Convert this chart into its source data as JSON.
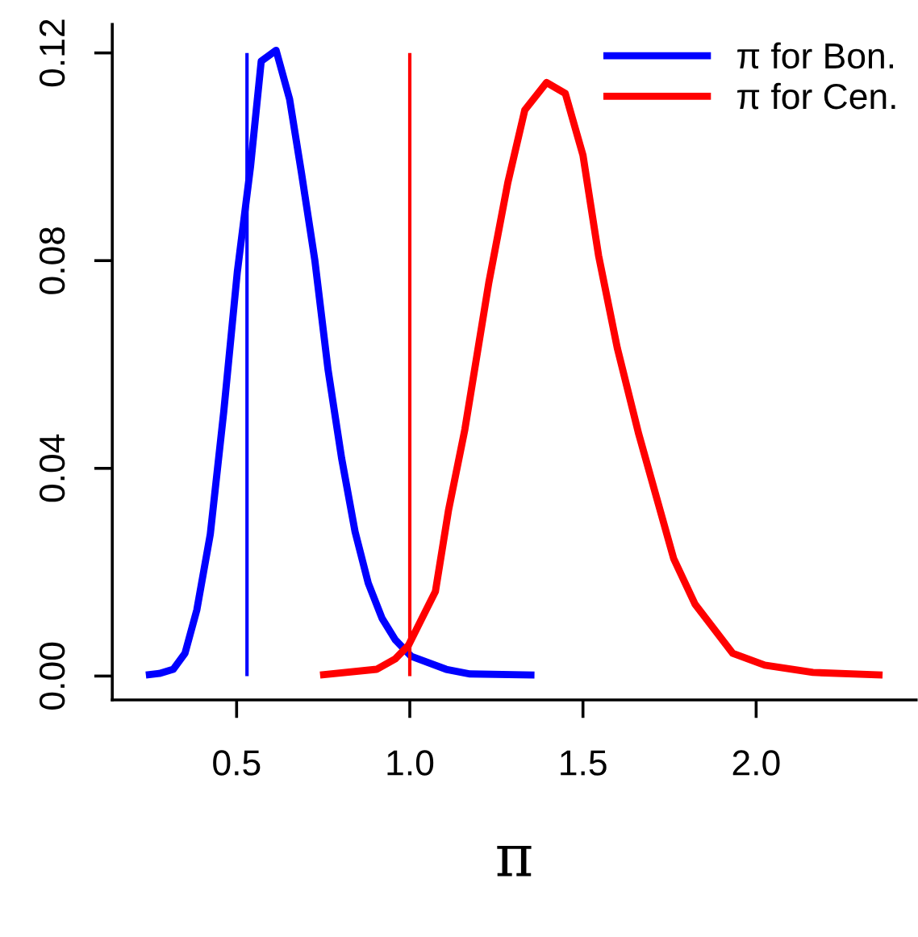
{
  "chart_data": {
    "type": "line",
    "xlabel": "π",
    "xlim": [
      0.141,
      2.462
    ],
    "ylim": [
      -0.0046,
      0.1255
    ],
    "xticks": [
      {
        "value": 0.5,
        "label": "0.5"
      },
      {
        "value": 1.0,
        "label": "1.0"
      },
      {
        "value": 1.5,
        "label": "1.5"
      },
      {
        "value": 2.0,
        "label": "2.0"
      }
    ],
    "yticks": [
      {
        "value": 0.0,
        "label": "0.00"
      },
      {
        "value": 0.04,
        "label": "0.04"
      },
      {
        "value": 0.08,
        "label": "0.08"
      },
      {
        "value": 0.12,
        "label": "0.12"
      }
    ],
    "grid": false,
    "legend": "top right",
    "marker": "none",
    "line_style": "solid",
    "ref_lines": [
      {
        "axis": "x",
        "value": 0.53,
        "color": "#0000ff"
      },
      {
        "axis": "x",
        "value": 1.0,
        "color": "#ff0000"
      }
    ],
    "series": [
      {
        "name": "π for Bon.",
        "color": "#0000ff",
        "x": [
          0.238,
          0.277,
          0.317,
          0.351,
          0.385,
          0.424,
          0.463,
          0.502,
          0.54,
          0.571,
          0.614,
          0.653,
          0.687,
          0.726,
          0.764,
          0.803,
          0.842,
          0.88,
          0.92,
          0.958,
          1.004,
          1.105,
          1.174,
          1.36
        ],
        "values": [
          0.0002,
          0.0005,
          0.0013,
          0.0044,
          0.0127,
          0.0273,
          0.051,
          0.0778,
          0.098,
          0.1184,
          0.1205,
          0.1111,
          0.097,
          0.08,
          0.059,
          0.042,
          0.0278,
          0.0179,
          0.0111,
          0.007,
          0.0038,
          0.0013,
          0.0004,
          0.0002
        ]
      },
      {
        "name": "π for Cen.",
        "color": "#ff0000",
        "x": [
          0.741,
          0.904,
          0.958,
          0.996,
          1.074,
          1.112,
          1.159,
          1.228,
          1.283,
          1.332,
          1.395,
          1.449,
          1.5,
          1.545,
          1.599,
          1.661,
          1.762,
          1.824,
          1.932,
          2.025,
          2.164,
          2.365
        ],
        "values": [
          0.0002,
          0.0013,
          0.0033,
          0.0059,
          0.0163,
          0.032,
          0.0475,
          0.0757,
          0.095,
          0.109,
          0.1143,
          0.1122,
          0.1003,
          0.081,
          0.0632,
          0.0466,
          0.0226,
          0.0138,
          0.0044,
          0.0021,
          0.0007,
          0.0002
        ]
      }
    ]
  }
}
